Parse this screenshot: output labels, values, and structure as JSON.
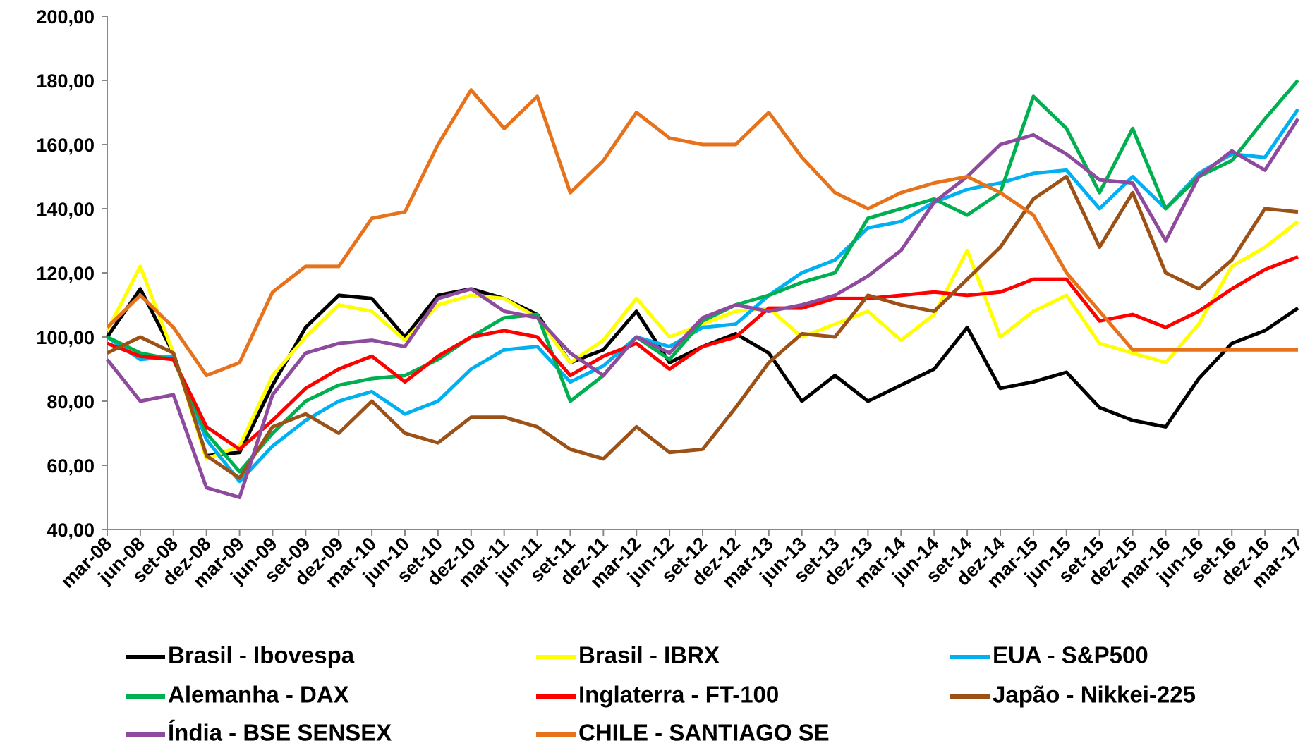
{
  "chart_data": {
    "type": "line",
    "categories": [
      "mar-08",
      "jun-08",
      "set-08",
      "dez-08",
      "mar-09",
      "jun-09",
      "set-09",
      "dez-09",
      "mar-10",
      "jun-10",
      "set-10",
      "dez-10",
      "mar-11",
      "jun-11",
      "set-11",
      "dez-11",
      "mar-12",
      "jun-12",
      "set-12",
      "dez-12",
      "mar-13",
      "jun-13",
      "set-13",
      "dez-13",
      "mar-14",
      "jun-14",
      "set-14",
      "dez-14",
      "mar-15",
      "jun-15",
      "set-15",
      "dez-15",
      "mar-16",
      "jun-16",
      "set-16",
      "dez-16",
      "mar-17"
    ],
    "ylim": [
      40,
      200
    ],
    "yticks": [
      {
        "value": 40,
        "label": "40,00"
      },
      {
        "value": 60,
        "label": "60,00"
      },
      {
        "value": 80,
        "label": "80,00"
      },
      {
        "value": 100,
        "label": "100,00"
      },
      {
        "value": 120,
        "label": "120,00"
      },
      {
        "value": 140,
        "label": "140,00"
      },
      {
        "value": 160,
        "label": "160,00"
      },
      {
        "value": 180,
        "label": "180,00"
      },
      {
        "value": 200,
        "label": "200,00"
      }
    ],
    "grid": false,
    "series": [
      {
        "name": "Brasil - Ibovespa",
        "color": "#000000",
        "values": [
          100,
          115,
          95,
          63,
          64,
          85,
          103,
          113,
          112,
          100,
          113,
          115,
          112,
          107,
          92,
          96,
          108,
          92,
          97,
          101,
          95,
          80,
          88,
          80,
          85,
          90,
          103,
          84,
          86,
          89,
          78,
          74,
          72,
          87,
          98,
          102,
          109
        ]
      },
      {
        "name": "Brasil - IBRX",
        "color": "#ffff00",
        "values": [
          102,
          122,
          95,
          62,
          66,
          88,
          100,
          110,
          108,
          99,
          110,
          113,
          112,
          106,
          92,
          99,
          112,
          100,
          104,
          108,
          109,
          100,
          104,
          108,
          99,
          107,
          127,
          100,
          108,
          113,
          98,
          95,
          92,
          104,
          122,
          128,
          136
        ]
      },
      {
        "name": "EUA - S&P500",
        "color": "#00b0f0",
        "values": [
          100,
          93,
          94,
          68,
          55,
          66,
          74,
          80,
          83,
          76,
          80,
          90,
          96,
          97,
          86,
          91,
          100,
          97,
          103,
          104,
          113,
          120,
          124,
          134,
          136,
          142,
          146,
          148,
          151,
          152,
          140,
          150,
          140,
          151,
          157,
          156,
          171
        ]
      },
      {
        "name": "Alemanha - DAX",
        "color": "#00b050",
        "values": [
          100,
          95,
          93,
          70,
          58,
          70,
          80,
          85,
          87,
          88,
          93,
          100,
          106,
          107,
          80,
          88,
          100,
          93,
          105,
          110,
          113,
          117,
          120,
          137,
          140,
          143,
          138,
          145,
          175,
          165,
          145,
          165,
          140,
          150,
          155,
          168,
          180
        ]
      },
      {
        "name": "Inglaterra - FT-100",
        "color": "#ff0000",
        "values": [
          98,
          94,
          93,
          72,
          65,
          74,
          84,
          90,
          94,
          86,
          94,
          100,
          102,
          100,
          88,
          94,
          98,
          90,
          97,
          100,
          109,
          109,
          112,
          112,
          113,
          114,
          113,
          114,
          118,
          118,
          105,
          107,
          103,
          108,
          115,
          121,
          125
        ]
      },
      {
        "name": "Japão - Nikkei-225",
        "color": "#9c5116",
        "values": [
          95,
          100,
          95,
          63,
          56,
          72,
          76,
          70,
          80,
          70,
          67,
          75,
          75,
          72,
          65,
          62,
          72,
          64,
          65,
          78,
          92,
          101,
          100,
          113,
          110,
          108,
          118,
          128,
          143,
          150,
          128,
          145,
          120,
          115,
          124,
          140,
          139
        ]
      },
      {
        "name": "Índia - BSE SENSEX",
        "color": "#8e4b9e",
        "values": [
          93,
          80,
          82,
          53,
          50,
          82,
          95,
          98,
          99,
          97,
          112,
          115,
          108,
          106,
          95,
          88,
          100,
          95,
          106,
          110,
          108,
          110,
          113,
          119,
          127,
          142,
          150,
          160,
          163,
          157,
          149,
          148,
          130,
          150,
          158,
          152,
          168
        ]
      },
      {
        "name": "CHILE - SANTIAGO SE",
        "color": "#e6731c",
        "values": [
          103,
          113,
          103,
          88,
          92,
          114,
          122,
          122,
          137,
          139,
          160,
          177,
          165,
          175,
          145,
          155,
          170,
          162,
          160,
          160,
          170,
          156,
          145,
          140,
          145,
          148,
          150,
          145,
          138,
          120,
          108,
          96,
          96,
          96,
          96,
          96,
          96
        ]
      }
    ]
  }
}
